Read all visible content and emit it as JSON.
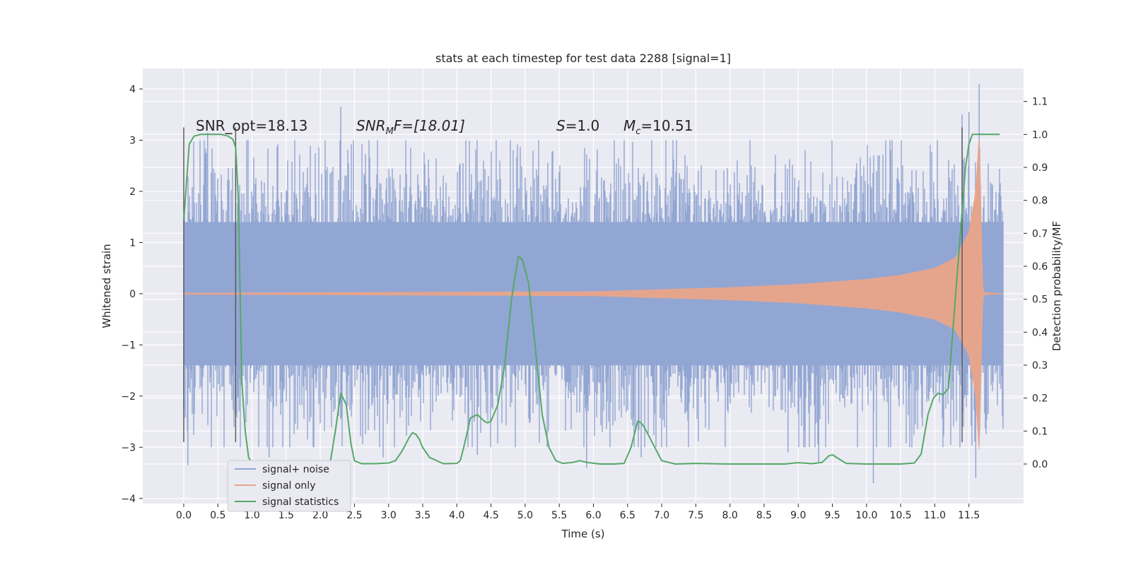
{
  "chart_data": {
    "type": "line",
    "title": "stats at each timestep for test data 2288 [signal=1]",
    "xlabel": "Time (s)",
    "ylabel": "Whitened strain",
    "ylabel_right": "Detection probability/MF",
    "xlim": [
      -0.6,
      12.3
    ],
    "ylim": [
      -4.1,
      4.4
    ],
    "ylim_right": [
      -0.12,
      1.2
    ],
    "x_ticks": [
      "0.0",
      "0.5",
      "1.0",
      "1.5",
      "2.0",
      "2.5",
      "3.0",
      "3.5",
      "4.0",
      "4.5",
      "5.0",
      "5.5",
      "6.0",
      "6.5",
      "7.0",
      "7.5",
      "8.0",
      "8.5",
      "9.0",
      "9.5",
      "10.0",
      "10.5",
      "11.0",
      "11.5"
    ],
    "y_ticks": [
      "4",
      "3",
      "2",
      "1",
      "0",
      "−1",
      "−2",
      "−3",
      "−4"
    ],
    "y_ticks_right": [
      "1.1",
      "1.0",
      "0.9",
      "0.8",
      "0.7",
      "0.6",
      "0.5",
      "0.4",
      "0.3",
      "0.2",
      "0.1",
      "0.0"
    ],
    "grid": true,
    "legend_position": "lower-left",
    "annotations": {
      "snr_opt": "SNR_opt=18.13",
      "snr_mf_main": "SNR",
      "snr_mf_sub": "M",
      "snr_mf_rest": "F=[18.01]",
      "s_main": "S",
      "s_rest": "=1.0",
      "mc_main": "M",
      "mc_sub": "c",
      "mc_rest": "=10.51"
    },
    "series": [
      {
        "name": "signal+ noise",
        "color": "#92a6d3",
        "x_range": [
          0.0,
          12.0
        ],
        "envelope_abs_max": 2.6,
        "peaks": [
          [
            0.06,
            -3.35
          ],
          [
            0.35,
            3.15
          ],
          [
            1.25,
            -3.2
          ],
          [
            2.3,
            3.65
          ],
          [
            2.92,
            -3.2
          ],
          [
            4.3,
            -3.15
          ],
          [
            5.9,
            -3.4
          ],
          [
            6.7,
            -3.2
          ],
          [
            8.85,
            -3.1
          ],
          [
            9.3,
            -3.3
          ],
          [
            10.1,
            -3.7
          ],
          [
            11.4,
            3.5
          ],
          [
            11.5,
            3.55
          ],
          [
            11.65,
            4.1
          ],
          [
            11.6,
            -3.6
          ]
        ]
      },
      {
        "name": "signal only",
        "color": "#e5a58d",
        "x_range": [
          0.0,
          12.0
        ],
        "amplitude": [
          [
            0.0,
            0.01
          ],
          [
            6.0,
            0.04
          ],
          [
            8.0,
            0.12
          ],
          [
            9.0,
            0.18
          ],
          [
            10.0,
            0.28
          ],
          [
            10.5,
            0.36
          ],
          [
            11.0,
            0.5
          ],
          [
            11.3,
            0.7
          ],
          [
            11.5,
            1.2
          ],
          [
            11.6,
            2.0
          ],
          [
            11.65,
            3.1
          ],
          [
            11.7,
            0.2
          ],
          [
            11.72,
            0.02
          ],
          [
            12.0,
            0.0
          ]
        ]
      },
      {
        "name": "signal statistics",
        "color": "#55a868",
        "axis": "right",
        "x": [
          0.0,
          0.08,
          0.15,
          0.25,
          0.4,
          0.55,
          0.65,
          0.72,
          0.76,
          0.8,
          0.85,
          0.9,
          0.95,
          1.0,
          1.05,
          1.1,
          1.5,
          2.0,
          2.15,
          2.22,
          2.3,
          2.38,
          2.45,
          2.5,
          2.6,
          2.8,
          3.0,
          3.1,
          3.2,
          3.3,
          3.35,
          3.4,
          3.45,
          3.5,
          3.6,
          3.8,
          4.0,
          4.05,
          4.1,
          4.2,
          4.3,
          4.4,
          4.45,
          4.5,
          4.6,
          4.7,
          4.8,
          4.9,
          4.96,
          5.05,
          5.15,
          5.25,
          5.35,
          5.45,
          5.55,
          5.7,
          5.8,
          5.9,
          6.1,
          6.3,
          6.45,
          6.55,
          6.65,
          6.7,
          6.75,
          6.9,
          7.0,
          7.2,
          7.5,
          8.0,
          8.5,
          8.8,
          9.0,
          9.2,
          9.35,
          9.45,
          9.5,
          9.6,
          9.7,
          10.0,
          10.5,
          10.7,
          10.8,
          10.9,
          10.98,
          11.05,
          11.12,
          11.2,
          11.3,
          11.45,
          11.5,
          11.55,
          11.6,
          11.8,
          11.93,
          11.95
        ],
        "y": [
          0.74,
          0.97,
          0.995,
          1.0,
          1.0,
          1.0,
          0.995,
          0.985,
          0.96,
          0.8,
          0.25,
          0.1,
          0.02,
          0.004,
          0.001,
          0.0,
          0.0,
          0.0,
          0.01,
          0.1,
          0.215,
          0.18,
          0.06,
          0.01,
          0.001,
          0.001,
          0.003,
          0.01,
          0.04,
          0.08,
          0.095,
          0.09,
          0.075,
          0.05,
          0.02,
          0.001,
          0.002,
          0.01,
          0.05,
          0.14,
          0.15,
          0.13,
          0.125,
          0.13,
          0.18,
          0.3,
          0.5,
          0.63,
          0.62,
          0.55,
          0.35,
          0.15,
          0.05,
          0.01,
          0.002,
          0.005,
          0.01,
          0.005,
          0.0,
          0.0,
          0.002,
          0.05,
          0.13,
          0.125,
          0.11,
          0.05,
          0.01,
          0.0,
          0.002,
          0.0,
          0.0,
          0.0,
          0.004,
          0.001,
          0.005,
          0.025,
          0.028,
          0.015,
          0.002,
          0.0,
          0.0,
          0.003,
          0.03,
          0.15,
          0.2,
          0.215,
          0.21,
          0.23,
          0.5,
          0.9,
          0.97,
          1.0,
          1.0,
          1.0,
          1.0,
          1.0
        ]
      }
    ],
    "markers": [
      {
        "x": 0.0,
        "ymin": -2.9,
        "ymax": 3.25
      },
      {
        "x": 0.76,
        "ymin": -2.9,
        "ymax": 3.25
      },
      {
        "x": 11.4,
        "ymin": -2.9,
        "ymax": 3.25
      }
    ],
    "colors": {
      "plot_bg": "#eaeaf2",
      "grid": "#ffffff",
      "marker_line": "#555555",
      "noise_fill": "#92a6d3",
      "signal_fill": "#e5a58d",
      "stat_line": "#55a868"
    }
  }
}
